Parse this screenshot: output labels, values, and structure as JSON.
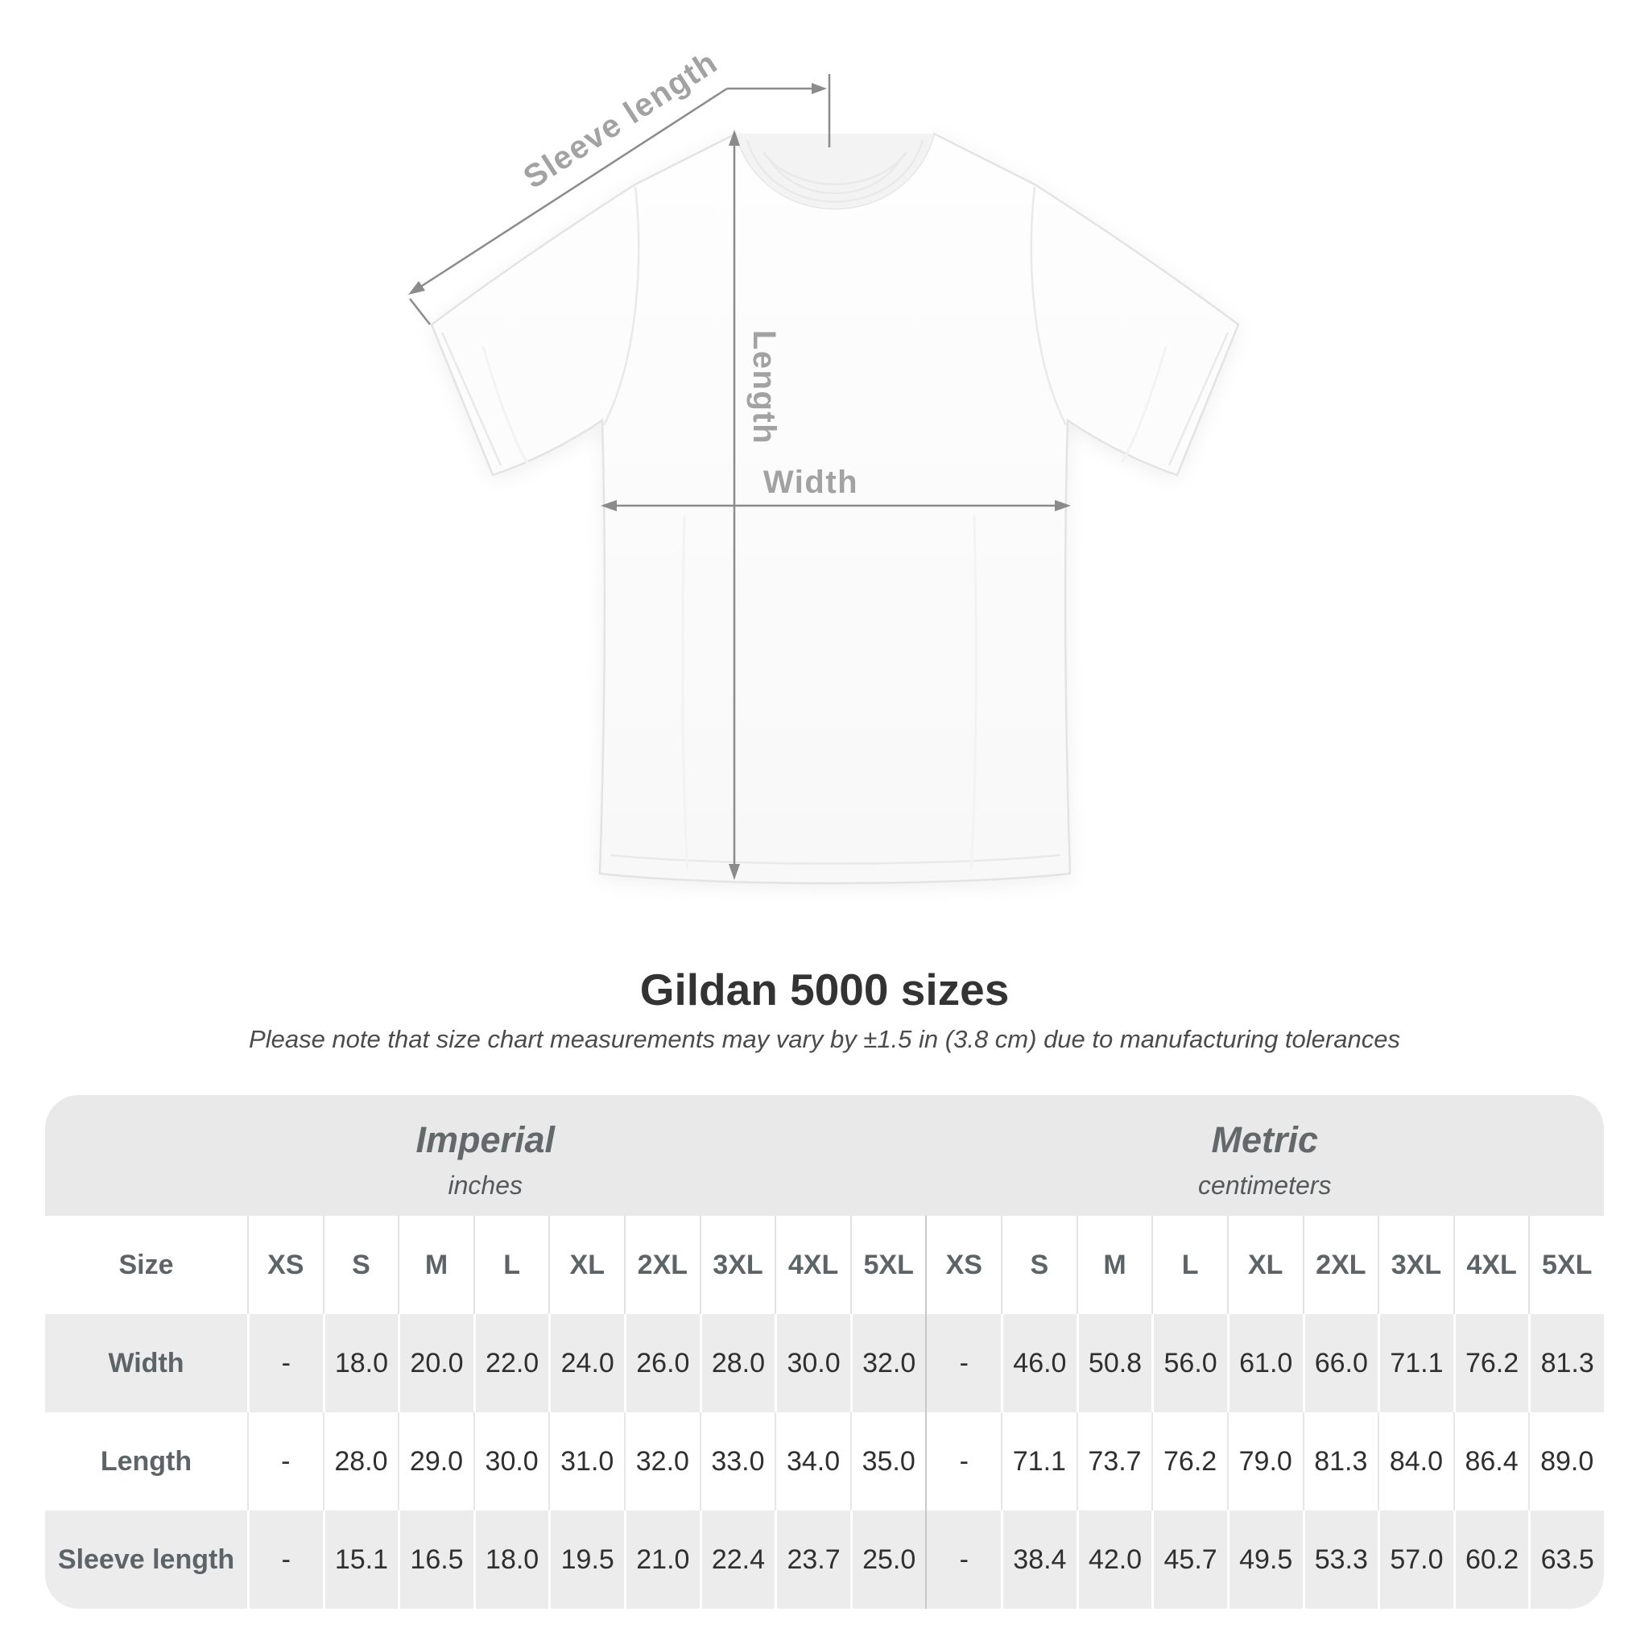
{
  "title": "Gildan 5000 sizes",
  "subtitle": "Please note that size chart measurements may vary by ±1.5 in (3.8 cm) due to manufacturing tolerances",
  "diagram": {
    "labels": {
      "sleeve_length": "Sleeve length",
      "length": "Length",
      "width": "Width"
    },
    "line_color": "#8b8b8b",
    "label_color": "#a2a2a2"
  },
  "table": {
    "groups": [
      {
        "label": "Imperial",
        "sublabel": "inches"
      },
      {
        "label": "Metric",
        "sublabel": "centimeters"
      }
    ],
    "size_header": "Size",
    "sizes": [
      "XS",
      "S",
      "M",
      "L",
      "XL",
      "2XL",
      "3XL",
      "4XL",
      "5XL"
    ],
    "rows": [
      {
        "label": "Width",
        "imperial": [
          "-",
          "18.0",
          "20.0",
          "22.0",
          "24.0",
          "26.0",
          "28.0",
          "30.0",
          "32.0"
        ],
        "metric": [
          "-",
          "46.0",
          "50.8",
          "56.0",
          "61.0",
          "66.0",
          "71.1",
          "76.2",
          "81.3"
        ]
      },
      {
        "label": "Length",
        "imperial": [
          "-",
          "28.0",
          "29.0",
          "30.0",
          "31.0",
          "32.0",
          "33.0",
          "34.0",
          "35.0"
        ],
        "metric": [
          "-",
          "71.1",
          "73.7",
          "76.2",
          "79.0",
          "81.3",
          "84.0",
          "86.4",
          "89.0"
        ]
      },
      {
        "label": "Sleeve length",
        "imperial": [
          "-",
          "15.1",
          "16.5",
          "18.0",
          "19.5",
          "21.0",
          "22.4",
          "23.7",
          "25.0"
        ],
        "metric": [
          "-",
          "38.4",
          "42.0",
          "45.7",
          "49.5",
          "53.3",
          "57.0",
          "60.2",
          "63.5"
        ]
      }
    ]
  },
  "chart_data": {
    "type": "table",
    "title": "Gildan 5000 sizes",
    "subtitle": "Please note that size chart measurements may vary by ±1.5 in (3.8 cm) due to manufacturing tolerances",
    "tolerance_note": "±1.5 in (3.8 cm)",
    "units": {
      "imperial": "inches",
      "metric": "centimeters"
    },
    "sizes": [
      "XS",
      "S",
      "M",
      "L",
      "XL",
      "2XL",
      "3XL",
      "4XL",
      "5XL"
    ],
    "measurements": [
      {
        "name": "Width",
        "imperial": [
          null,
          18.0,
          20.0,
          22.0,
          24.0,
          26.0,
          28.0,
          30.0,
          32.0
        ],
        "metric": [
          null,
          46.0,
          50.8,
          56.0,
          61.0,
          66.0,
          71.1,
          76.2,
          81.3
        ]
      },
      {
        "name": "Length",
        "imperial": [
          null,
          28.0,
          29.0,
          30.0,
          31.0,
          32.0,
          33.0,
          34.0,
          35.0
        ],
        "metric": [
          null,
          71.1,
          73.7,
          76.2,
          79.0,
          81.3,
          84.0,
          86.4,
          89.0
        ]
      },
      {
        "name": "Sleeve length",
        "imperial": [
          null,
          15.1,
          16.5,
          18.0,
          19.5,
          21.0,
          22.4,
          23.7,
          25.0
        ],
        "metric": [
          null,
          38.4,
          42.0,
          45.7,
          49.5,
          53.3,
          57.0,
          60.2,
          63.5
        ]
      }
    ]
  }
}
